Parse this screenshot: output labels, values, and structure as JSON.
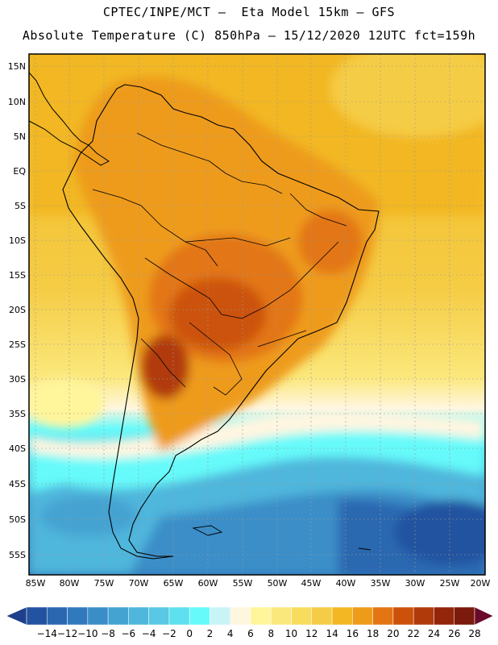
{
  "header": {
    "line1": "CPTEC/INPE/MCT —  Eta Model 15km — GFS",
    "line2": "Absolute Temperature (C) 850hPa — 15/12/2020 12UTC fct=159h"
  },
  "lat_labels": [
    "15N",
    "10N",
    "5N",
    "EQ",
    "5S",
    "10S",
    "15S",
    "20S",
    "25S",
    "30S",
    "35S",
    "40S",
    "45S",
    "50S",
    "55S"
  ],
  "lon_labels": [
    "85W",
    "80W",
    "75W",
    "70W",
    "65W",
    "60W",
    "55W",
    "50W",
    "45W",
    "40W",
    "35W",
    "30W",
    "25W",
    "20W"
  ],
  "colorbar": {
    "labels": [
      "-14",
      "-12",
      "-10",
      "-8",
      "-6",
      "-4",
      "-2",
      "0",
      "2",
      "4",
      "6",
      "8",
      "10",
      "12",
      "14",
      "16",
      "18",
      "20",
      "22",
      "24",
      "26",
      "28"
    ],
    "colors": [
      "#1e3f8c",
      "#2353a0",
      "#2a67b0",
      "#3079bd",
      "#3a8ec8",
      "#45a3d2",
      "#4fb6dc",
      "#58c8e4",
      "#5fe0ee",
      "#66fafa",
      "#c8f4f7",
      "#fff6e0",
      "#fff59a",
      "#fbe87c",
      "#f8dc5e",
      "#f5cc45",
      "#f2b722",
      "#ee9b1a",
      "#e37612",
      "#cc520c",
      "#b13a0a",
      "#93250a",
      "#7a1a0c",
      "#6a0a2a"
    ]
  }
}
